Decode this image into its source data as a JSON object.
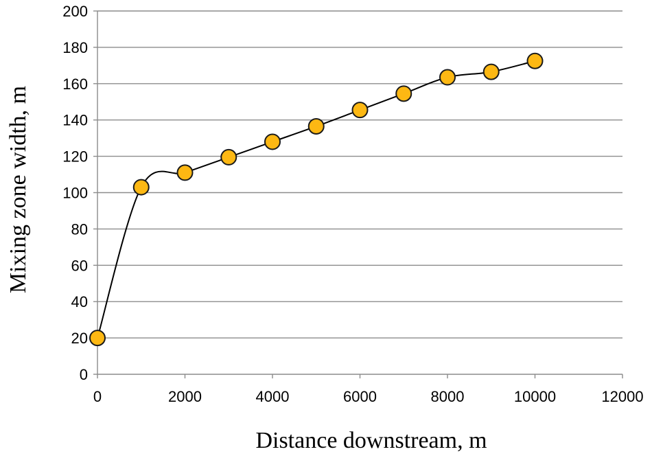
{
  "chart_data": {
    "type": "scatter",
    "title": "",
    "xlabel": "Distance downstream, m",
    "ylabel": "Mixing zone width, m",
    "xlim": [
      0,
      12000
    ],
    "ylim": [
      0,
      200
    ],
    "xticks": [
      0,
      2000,
      4000,
      6000,
      8000,
      10000,
      12000
    ],
    "yticks": [
      0,
      20,
      40,
      60,
      80,
      100,
      120,
      140,
      160,
      180,
      200
    ],
    "grid": "horizontal",
    "legend": "none",
    "marker_color": "#FDB813",
    "marker_edge_color": "#1a1a1a",
    "line_color": "#000000",
    "smoothed_line": true,
    "series": [
      {
        "x": [
          0,
          1000,
          2000,
          3000,
          4000,
          5000,
          6000,
          7000,
          8000,
          9000,
          10000
        ],
        "y": [
          20,
          103,
          111,
          119.5,
          128,
          136.5,
          145.5,
          154.5,
          163.5,
          166.5,
          172.5
        ]
      }
    ]
  }
}
